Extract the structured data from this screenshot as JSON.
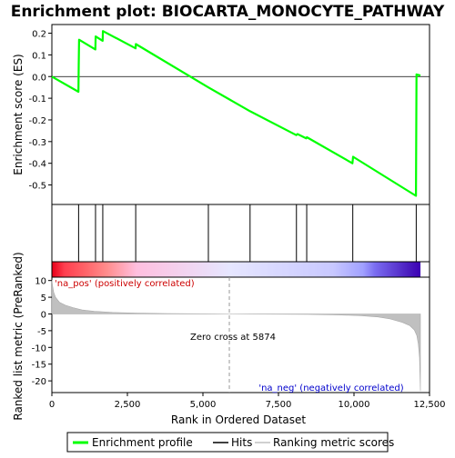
{
  "chart_data": {
    "type": "line",
    "title": "Enrichment plot: BIOCARTA_MONOCYTE_PATHWAY",
    "xlabel": "Rank in Ordered Dataset",
    "xlim": [
      0,
      12500
    ],
    "x_ticks": [
      0,
      2500,
      5000,
      7500,
      10000,
      12500
    ],
    "x_tick_labels": [
      "0",
      "2,500",
      "5,000",
      "7,500",
      "10,000",
      "12,500"
    ],
    "top_panel": {
      "ylabel": "Enrichment score (ES)",
      "ylim": [
        -0.59,
        0.24
      ],
      "y_ticks": [
        0.2,
        0.1,
        0.0,
        -0.1,
        -0.2,
        -0.3,
        -0.4,
        -0.5
      ],
      "y_tick_labels": [
        "0.2",
        "0.1",
        "0.0",
        "-0.1",
        "-0.2",
        "-0.3",
        "-0.4",
        "-0.5"
      ],
      "series": [
        {
          "name": "Enrichment profile",
          "color": "#00ff00",
          "x": [
            0,
            880,
            890,
            900,
            1440,
            1450,
            1680,
            1690,
            2770,
            2780,
            5180,
            6560,
            8090,
            8130,
            8420,
            8440,
            9950,
            9970,
            12050,
            12070,
            12200
          ],
          "y": [
            0.0,
            -0.07,
            0.05,
            0.17,
            0.125,
            0.185,
            0.165,
            0.21,
            0.13,
            0.15,
            -0.05,
            -0.16,
            -0.27,
            -0.265,
            -0.285,
            -0.28,
            -0.4,
            -0.37,
            -0.55,
            0.01,
            0.005
          ]
        }
      ]
    },
    "hits": {
      "name": "Hits",
      "color": "#000000",
      "x": [
        885,
        1445,
        1685,
        2775,
        5180,
        6560,
        8095,
        8435,
        9960,
        12060
      ]
    },
    "color_bar": {
      "x_range": [
        0,
        12200
      ],
      "stops": [
        {
          "x": 0,
          "color": "#e8001a"
        },
        {
          "x": 400,
          "color": "#ff3f4f"
        },
        {
          "x": 1100,
          "color": "#ff6469"
        },
        {
          "x": 1800,
          "color": "#ff8c8c"
        },
        {
          "x": 2800,
          "color": "#ffbfdf"
        },
        {
          "x": 5874,
          "color": "#e6e6ff"
        },
        {
          "x": 9300,
          "color": "#c8c8ff"
        },
        {
          "x": 10300,
          "color": "#a0a0ff"
        },
        {
          "x": 10700,
          "color": "#7a6cf0"
        },
        {
          "x": 11800,
          "color": "#4a1dbf"
        },
        {
          "x": 12200,
          "color": "#3c00b4"
        }
      ]
    },
    "bottom_panel": {
      "ylabel": "Ranked list metric (PreRanked)",
      "ylim": [
        -23.5,
        11
      ],
      "y_ticks": [
        10,
        5,
        0,
        -5,
        -10,
        -15,
        -20
      ],
      "y_tick_labels": [
        "10",
        "5",
        "0",
        "-5",
        "-10",
        "-15",
        "-20"
      ],
      "series": [
        {
          "name": "Ranking metric scores",
          "color": "#c0c0c0",
          "x": [
            0,
            20,
            60,
            120,
            250,
            450,
            700,
            1000,
            1400,
            2000,
            2800,
            3800,
            5000,
            5874,
            7000,
            8500,
            9500,
            10200,
            10800,
            11200,
            11600,
            11850,
            12000,
            12080,
            12130,
            12170,
            12200
          ],
          "y": [
            10.2,
            8.5,
            6.5,
            5.0,
            3.5,
            2.6,
            1.9,
            1.2,
            0.8,
            0.45,
            0.25,
            0.12,
            0.04,
            0.0,
            -0.06,
            -0.15,
            -0.3,
            -0.5,
            -0.9,
            -1.5,
            -2.5,
            -3.5,
            -4.8,
            -6.5,
            -9.0,
            -13.0,
            -23.0
          ]
        }
      ],
      "annotations": [
        {
          "text": "'na_pos' (positively correlated)",
          "color": "#cc0000"
        },
        {
          "text": "Zero cross at 5874",
          "color": "#000000",
          "x": 5874
        },
        {
          "text": "'na_neg' (negatively correlated)",
          "color": "#0000cc"
        }
      ]
    },
    "legend": {
      "placement": "bottom",
      "entries": [
        {
          "label": "Enrichment profile",
          "color": "#00ff00"
        },
        {
          "label": "Hits",
          "color": "#000000"
        },
        {
          "label": "Ranking metric scores",
          "color": "#c0c0c0"
        }
      ]
    }
  }
}
